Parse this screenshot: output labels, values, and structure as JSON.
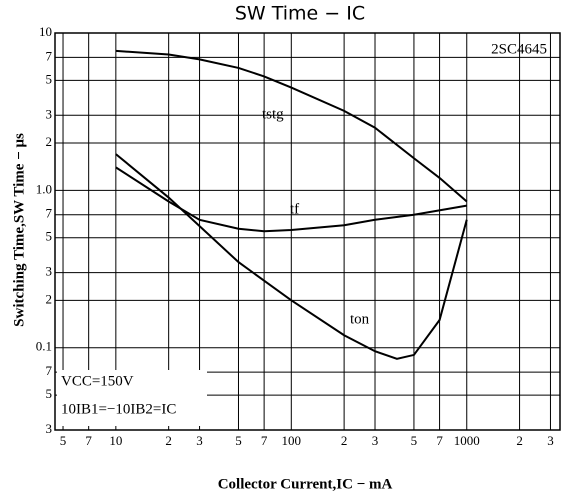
{
  "chart_data": {
    "type": "line",
    "title": "SW Time − IC",
    "part": "2SC4645",
    "x_label": "Collector Current,IC − mA",
    "y_label": "Switching Time,SW Time − μs",
    "annotations": [
      "VCC=150V",
      "10IB1=−10IB2=IC"
    ],
    "xscale": "log",
    "yscale": "log",
    "grid": true,
    "color": "#000000",
    "xlim": [
      4.5,
      3400
    ],
    "ylim": [
      0.03,
      10
    ],
    "xticks": [
      5,
      7,
      10,
      {
        "value": 20,
        "label": "2"
      },
      {
        "value": 30,
        "label": "3"
      },
      {
        "value": 50,
        "label": "5"
      },
      {
        "value": 70,
        "label": "7"
      },
      100,
      {
        "value": 200,
        "label": "2"
      },
      {
        "value": 300,
        "label": "3"
      },
      {
        "value": 500,
        "label": "5"
      },
      {
        "value": 700,
        "label": "7"
      },
      1000,
      {
        "value": 2000,
        "label": "2"
      },
      {
        "value": 3000,
        "label": "3"
      }
    ],
    "yticks": [
      {
        "value": 0.03,
        "label": "3"
      },
      {
        "value": 0.05,
        "label": "5"
      },
      {
        "value": 0.07,
        "label": "7"
      },
      0.1,
      {
        "value": 0.2,
        "label": "2"
      },
      {
        "value": 0.3,
        "label": "3"
      },
      {
        "value": 0.5,
        "label": "5"
      },
      {
        "value": 0.7,
        "label": "7"
      },
      {
        "value": 1,
        "label": "1.0"
      },
      2,
      3,
      5,
      7,
      10
    ],
    "series": [
      {
        "name": "tstg",
        "x": [
          10,
          20,
          30,
          50,
          70,
          100,
          200,
          300,
          500,
          700,
          1000
        ],
        "values": [
          7.7,
          7.3,
          6.8,
          6.0,
          5.3,
          4.5,
          3.2,
          2.5,
          1.6,
          1.2,
          0.85
        ]
      },
      {
        "name": "tf",
        "x": [
          10,
          20,
          30,
          50,
          70,
          100,
          200,
          300,
          500,
          1000
        ],
        "values": [
          1.4,
          0.85,
          0.65,
          0.57,
          0.55,
          0.56,
          0.6,
          0.65,
          0.7,
          0.8
        ]
      },
      {
        "name": "ton",
        "x": [
          10,
          20,
          50,
          100,
          200,
          300,
          400,
          500,
          700,
          1000
        ],
        "values": [
          1.7,
          0.9,
          0.35,
          0.2,
          0.12,
          0.095,
          0.085,
          0.09,
          0.15,
          0.65
        ]
      }
    ]
  }
}
